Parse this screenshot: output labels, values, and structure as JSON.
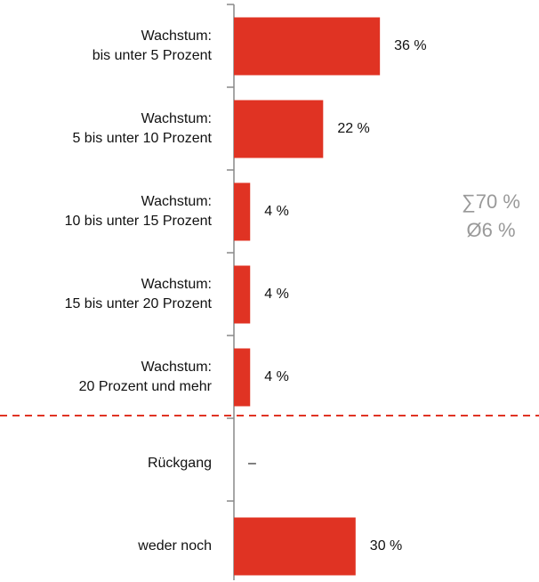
{
  "chart_data": {
    "type": "hbar",
    "categories": [
      "Wachstum:\nbis unter 5 Prozent",
      "Wachstum:\n5 bis unter 10 Prozent",
      "Wachstum:\n10 bis unter 15 Prozent",
      "Wachstum:\n15 bis unter 20 Prozent",
      "Wachstum:\n20 Prozent und mehr",
      "Rückgang",
      "weder noch"
    ],
    "values": [
      36,
      22,
      4,
      4,
      4,
      null,
      30
    ],
    "value_labels": [
      "36 %",
      "22 %",
      "4 %",
      "4 %",
      "4 %",
      "–",
      "30 %"
    ],
    "color": "#e03323",
    "annotations": [
      "∑70 %",
      "Ø6 %"
    ]
  }
}
